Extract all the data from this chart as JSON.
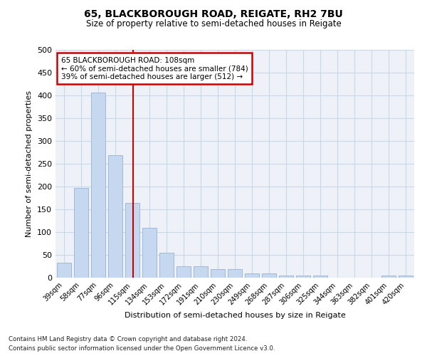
{
  "title": "65, BLACKBOROUGH ROAD, REIGATE, RH2 7BU",
  "subtitle": "Size of property relative to semi-detached houses in Reigate",
  "xlabel": "Distribution of semi-detached houses by size in Reigate",
  "ylabel": "Number of semi-detached properties",
  "categories": [
    "39sqm",
    "58sqm",
    "77sqm",
    "96sqm",
    "115sqm",
    "134sqm",
    "153sqm",
    "172sqm",
    "191sqm",
    "210sqm",
    "230sqm",
    "249sqm",
    "268sqm",
    "287sqm",
    "306sqm",
    "325sqm",
    "344sqm",
    "363sqm",
    "382sqm",
    "401sqm",
    "420sqm"
  ],
  "values": [
    33,
    197,
    407,
    269,
    164,
    110,
    55,
    25,
    25,
    19,
    19,
    10,
    10,
    5,
    5,
    4,
    0,
    0,
    0,
    5,
    5
  ],
  "bar_color": "#c5d8f0",
  "bar_edge_color": "#a0b8d8",
  "annotation_line_index": 4.05,
  "annotation_text_line1": "65 BLACKBOROUGH ROAD: 108sqm",
  "annotation_text_line2": "← 60% of semi-detached houses are smaller (784)",
  "annotation_text_line3": "39% of semi-detached houses are larger (512) →",
  "annotation_box_color": "#ffffff",
  "annotation_box_edge": "#cc0000",
  "red_line_color": "#cc0000",
  "ylim": [
    0,
    500
  ],
  "yticks": [
    0,
    50,
    100,
    150,
    200,
    250,
    300,
    350,
    400,
    450,
    500
  ],
  "grid_color": "#c8d8e8",
  "bg_color": "#eef2f8",
  "footnote1": "Contains HM Land Registry data © Crown copyright and database right 2024.",
  "footnote2": "Contains public sector information licensed under the Open Government Licence v3.0."
}
